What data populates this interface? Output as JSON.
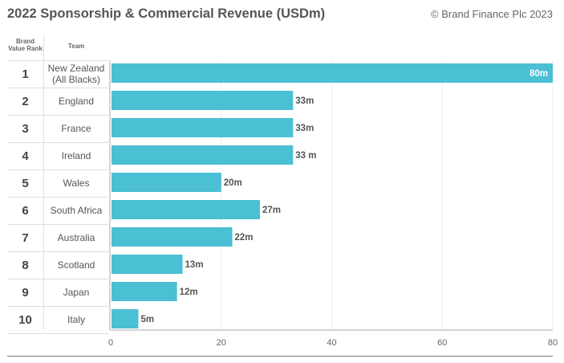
{
  "title": "2022 Sponsorship & Commercial Revenue (USDm)",
  "copyright": "© Brand Finance Plc 2023",
  "table_headers": {
    "rank": "Brand Value Rank",
    "team": "Team"
  },
  "chart_data": {
    "type": "bar",
    "orientation": "horizontal",
    "title": "2022 Sponsorship & Commercial Revenue (USDm)",
    "categories": [
      "New Zealand (All Blacks)",
      "England",
      "France",
      "Ireland",
      "Wales",
      "South Africa",
      "Australia",
      "Scotland",
      "Japan",
      "Italy"
    ],
    "ranks": [
      "1",
      "2",
      "3",
      "4",
      "5",
      "6",
      "7",
      "8",
      "9",
      "10"
    ],
    "values": [
      80,
      33,
      33,
      33,
      20,
      27,
      22,
      13,
      12,
      5
    ],
    "data_labels": [
      "80m",
      "33m",
      "33m",
      "33 m",
      "20m",
      "27m",
      "22m",
      "13m",
      "12m",
      "5m"
    ],
    "xlim": [
      0,
      80
    ],
    "xticks": [
      "0",
      "20",
      "40",
      "60",
      "80"
    ],
    "grid": true,
    "bar_color": "#4bbfd3"
  }
}
